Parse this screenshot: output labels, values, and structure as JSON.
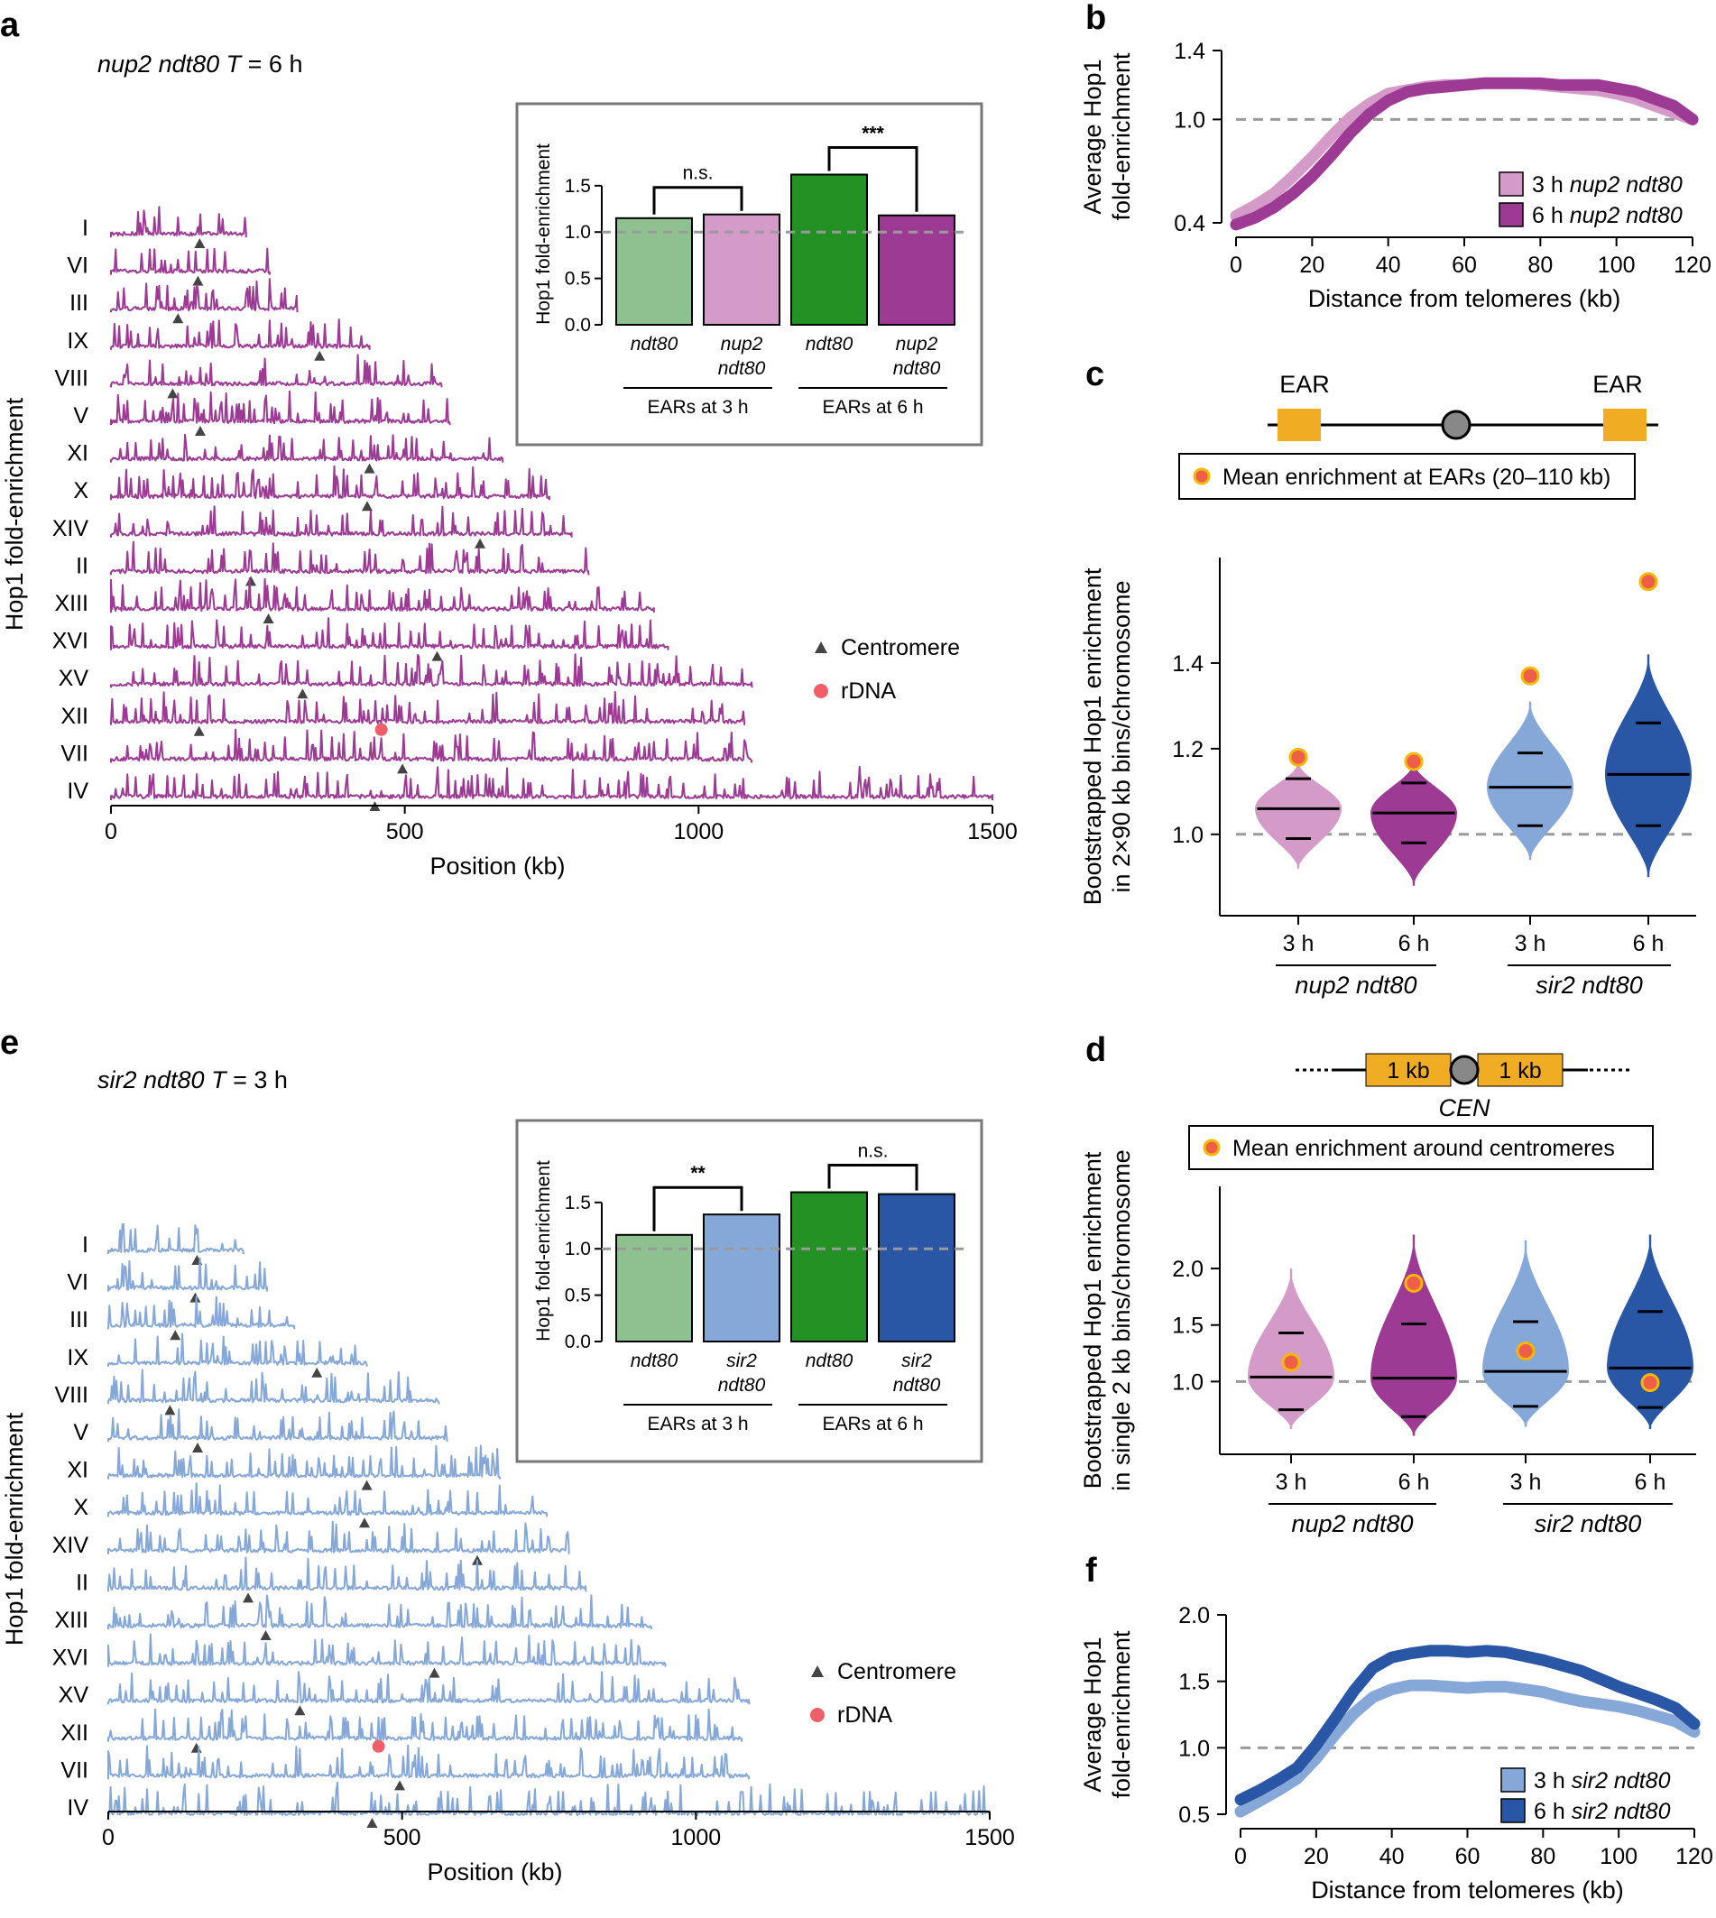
{
  "colors": {
    "ndt80_3h": "#8fc190",
    "ndt80_6h": "#249124",
    "nup2_3h": "#d59bc8",
    "nup2_6h": "#9d3a94",
    "sir2_3h": "#86a8d8",
    "sir2_6h": "#2a56a6",
    "dashed": "#9a9a9a",
    "centromere": "#444444",
    "rdna": "#ee5f6a",
    "ear": "#f0ad23",
    "dot_fill": "#ee5f4a",
    "dot_edge": "#f5b700"
  },
  "chart_data": [
    {
      "id": "a",
      "type": "line",
      "panel_label": "a",
      "title": "nup2 ndt80 T = 6 h",
      "title_parts": [
        "nup2 ndt80",
        "T",
        " = 6 h"
      ],
      "xlabel": "Position (kb)",
      "ylabel": "Hop1 fold-enrichment",
      "xlim": [
        0,
        1500
      ],
      "xticks": [
        "0",
        "500",
        "1000",
        "1500"
      ],
      "series_color": "#9d3a94",
      "chromosomes": [
        {
          "name": "I",
          "length": 230,
          "centromere": 151
        },
        {
          "name": "VI",
          "length": 270,
          "centromere": 148
        },
        {
          "name": "III",
          "length": 317,
          "centromere": 114
        },
        {
          "name": "IX",
          "length": 440,
          "centromere": 355
        },
        {
          "name": "VIII",
          "length": 563,
          "centromere": 105
        },
        {
          "name": "V",
          "length": 577,
          "centromere": 152
        },
        {
          "name": "XI",
          "length": 667,
          "centromere": 440
        },
        {
          "name": "X",
          "length": 746,
          "centromere": 436
        },
        {
          "name": "XIV",
          "length": 784,
          "centromere": 628
        },
        {
          "name": "II",
          "length": 813,
          "centromere": 238
        },
        {
          "name": "XIII",
          "length": 924,
          "centromere": 268
        },
        {
          "name": "XVI",
          "length": 948,
          "centromere": 555
        },
        {
          "name": "XV",
          "length": 1091,
          "centromere": 326
        },
        {
          "name": "XII",
          "length": 1078,
          "centromere": 150,
          "rdna": 460
        },
        {
          "name": "VII",
          "length": 1090,
          "centromere": 496
        },
        {
          "name": "IV",
          "length": 1532,
          "centromere": 449
        }
      ],
      "legend": {
        "centromere": "Centromere",
        "rdna": "rDNA"
      }
    },
    {
      "id": "a_inset",
      "type": "bar",
      "ylabel": "Hop1 fold-enrichment",
      "ylim": [
        0,
        1.8
      ],
      "yticks": [
        "0.0",
        "0.5",
        "1.0",
        "1.5"
      ],
      "reference_line": 1.0,
      "categories": [
        "ndt80",
        "nup2 ndt80",
        "ndt80",
        "nup2 ndt80"
      ],
      "category_lines": [
        [
          "ndt80"
        ],
        [
          "nup2",
          "ndt80"
        ],
        [
          "ndt80"
        ],
        [
          "nup2",
          "ndt80"
        ]
      ],
      "values": [
        1.15,
        1.19,
        1.62,
        1.18
      ],
      "bar_colors": [
        "#8fc190",
        "#d59bc8",
        "#249124",
        "#9d3a94"
      ],
      "groups": [
        "EARs at 3 h",
        "EARs at 6 h"
      ],
      "significance": [
        "n.s.",
        "***"
      ]
    },
    {
      "id": "b",
      "type": "line",
      "panel_label": "b",
      "xlabel": "Distance from telomeres (kb)",
      "ylabel": [
        "Average Hop1",
        "fold-enrichment"
      ],
      "xlim": [
        0,
        120
      ],
      "ylim": [
        0.4,
        1.4
      ],
      "xticks": [
        "0",
        "20",
        "40",
        "60",
        "80",
        "100",
        "120"
      ],
      "yticks": [
        "0.4",
        "1.0",
        "1.4"
      ],
      "reference_line": 1.0,
      "x": [
        0,
        5,
        10,
        15,
        20,
        25,
        30,
        35,
        40,
        45,
        50,
        55,
        60,
        65,
        70,
        75,
        80,
        85,
        90,
        95,
        100,
        105,
        110,
        115,
        120
      ],
      "series": [
        {
          "name": "3 h nup2 ndt80",
          "label_parts": [
            "3 h ",
            "nup2 ndt80"
          ],
          "color": "#d59bc8",
          "values": [
            0.44,
            0.5,
            0.57,
            0.67,
            0.78,
            0.9,
            1.01,
            1.09,
            1.15,
            1.17,
            1.19,
            1.2,
            1.2,
            1.21,
            1.21,
            1.21,
            1.2,
            1.19,
            1.18,
            1.17,
            1.15,
            1.12,
            1.08,
            1.04,
            1.0
          ]
        },
        {
          "name": "6 h nup2 ndt80",
          "label_parts": [
            "6 h ",
            "nup2 ndt80"
          ],
          "color": "#9d3a94",
          "values": [
            0.39,
            0.43,
            0.49,
            0.57,
            0.67,
            0.79,
            0.92,
            1.03,
            1.11,
            1.16,
            1.18,
            1.19,
            1.2,
            1.21,
            1.21,
            1.21,
            1.21,
            1.2,
            1.2,
            1.2,
            1.18,
            1.16,
            1.12,
            1.08,
            1.0
          ]
        }
      ]
    },
    {
      "id": "c",
      "type": "violin",
      "panel_label": "c",
      "schematic_labels": [
        "EAR",
        "EAR"
      ],
      "legend": "Mean enrichment at EARs (20–110 kb)",
      "ylabel": [
        "Bootstrapped Hop1 enrichment",
        "in 2×90 kb bins/chromosome"
      ],
      "ylim": [
        0.85,
        1.6
      ],
      "yticks": [
        "1.0",
        "1.2",
        "1.4"
      ],
      "reference_line": 1.0,
      "categories": [
        "3 h",
        "6 h",
        "3 h",
        "6 h"
      ],
      "groups": [
        "nup2 ndt80",
        "sir2 ndt80"
      ],
      "violins": [
        {
          "color": "#d59bc8",
          "median": 1.06,
          "q_low": 0.99,
          "q_high": 1.13,
          "min": 0.92,
          "max": 1.17,
          "mean_point": 1.18
        },
        {
          "color": "#9d3a94",
          "median": 1.05,
          "q_low": 0.98,
          "q_high": 1.12,
          "min": 0.88,
          "max": 1.17,
          "mean_point": 1.17
        },
        {
          "color": "#86a8d8",
          "median": 1.11,
          "q_low": 1.02,
          "q_high": 1.19,
          "min": 0.94,
          "max": 1.31,
          "mean_point": 1.37
        },
        {
          "color": "#2a56a6",
          "median": 1.14,
          "q_low": 1.02,
          "q_high": 1.26,
          "min": 0.9,
          "max": 1.42,
          "mean_point": 1.59
        }
      ]
    },
    {
      "id": "e",
      "type": "line",
      "panel_label": "e",
      "title": "sir2 ndt80 T = 3 h",
      "title_parts": [
        "sir2 ndt80",
        "T",
        " = 3 h"
      ],
      "xlabel": "Position (kb)",
      "ylabel": "Hop1 fold-enrichment",
      "xlim": [
        0,
        1500
      ],
      "xticks": [
        "0",
        "500",
        "1000",
        "1500"
      ],
      "series_color": "#86a8d8",
      "legend": {
        "centromere": "Centromere",
        "rdna": "rDNA"
      }
    },
    {
      "id": "e_inset",
      "type": "bar",
      "ylabel": "Hop1 fold-enrichment",
      "ylim": [
        0,
        1.8
      ],
      "yticks": [
        "0.0",
        "0.5",
        "1.0",
        "1.5"
      ],
      "reference_line": 1.0,
      "categories": [
        "ndt80",
        "sir2 ndt80",
        "ndt80",
        "sir2 ndt80"
      ],
      "category_lines": [
        [
          "ndt80"
        ],
        [
          "sir2",
          "ndt80"
        ],
        [
          "ndt80"
        ],
        [
          "sir2",
          "ndt80"
        ]
      ],
      "values": [
        1.15,
        1.37,
        1.61,
        1.59
      ],
      "bar_colors": [
        "#8fc190",
        "#86a8d8",
        "#249124",
        "#2a56a6"
      ],
      "groups": [
        "EARs at 3 h",
        "EARs at 6 h"
      ],
      "significance": [
        "**",
        "n.s."
      ]
    },
    {
      "id": "d",
      "type": "violin",
      "panel_label": "d",
      "schematic_labels": [
        "1 kb",
        "1 kb",
        "CEN"
      ],
      "legend": "Mean enrichment around centromeres",
      "ylabel": [
        "Bootstrapped Hop1 enrichment",
        "in single 2 kb bins/chromosome"
      ],
      "ylim": [
        0.5,
        2.4
      ],
      "yticks": [
        "1.0",
        "1.5",
        "2.0"
      ],
      "reference_line": 1.0,
      "categories": [
        "3 h",
        "6 h",
        "3 h",
        "6 h"
      ],
      "groups": [
        "nup2 ndt80",
        "sir2 ndt80"
      ],
      "violins": [
        {
          "color": "#d59bc8",
          "median": 1.04,
          "q_low": 0.75,
          "q_high": 1.43,
          "min": 0.58,
          "max": 2.0,
          "mean_point": 1.17
        },
        {
          "color": "#9d3a94",
          "median": 1.03,
          "q_low": 0.69,
          "q_high": 1.51,
          "min": 0.52,
          "max": 2.3,
          "mean_point": 1.87
        },
        {
          "color": "#86a8d8",
          "median": 1.09,
          "q_low": 0.78,
          "q_high": 1.53,
          "min": 0.6,
          "max": 2.25,
          "mean_point": 1.27
        },
        {
          "color": "#2a56a6",
          "median": 1.12,
          "q_low": 0.77,
          "q_high": 1.62,
          "min": 0.58,
          "max": 2.3,
          "mean_point": 0.99
        }
      ]
    },
    {
      "id": "f",
      "type": "line",
      "panel_label": "f",
      "xlabel": "Distance from telomeres (kb)",
      "ylabel": [
        "Average Hop1",
        "fold-enrichment"
      ],
      "xlim": [
        0,
        120
      ],
      "ylim": [
        0.5,
        2.0
      ],
      "xticks": [
        "0",
        "20",
        "40",
        "60",
        "80",
        "100",
        "120"
      ],
      "yticks": [
        "0.5",
        "1.0",
        "1.5",
        "2.0"
      ],
      "reference_line": 1.0,
      "x": [
        0,
        5,
        10,
        15,
        20,
        25,
        30,
        35,
        40,
        45,
        50,
        55,
        60,
        65,
        70,
        75,
        80,
        85,
        90,
        95,
        100,
        105,
        110,
        115,
        120
      ],
      "series": [
        {
          "name": "3 h sir2 ndt80",
          "label_parts": [
            "3 h ",
            "sir2 ndt80"
          ],
          "color": "#86a8d8",
          "values": [
            0.52,
            0.6,
            0.68,
            0.77,
            0.92,
            1.1,
            1.26,
            1.38,
            1.44,
            1.47,
            1.47,
            1.46,
            1.45,
            1.46,
            1.46,
            1.44,
            1.42,
            1.38,
            1.35,
            1.33,
            1.31,
            1.28,
            1.24,
            1.2,
            1.12
          ]
        },
        {
          "name": "6 h sir2 ndt80",
          "label_parts": [
            "6 h ",
            "sir2 ndt80"
          ],
          "color": "#2a56a6",
          "values": [
            0.61,
            0.68,
            0.76,
            0.85,
            1.02,
            1.22,
            1.43,
            1.6,
            1.68,
            1.71,
            1.73,
            1.73,
            1.72,
            1.73,
            1.72,
            1.69,
            1.66,
            1.62,
            1.58,
            1.52,
            1.46,
            1.41,
            1.36,
            1.3,
            1.18
          ]
        }
      ]
    }
  ]
}
